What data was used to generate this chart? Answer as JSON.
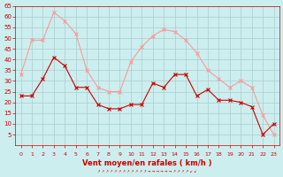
{
  "hours": [
    0,
    1,
    2,
    3,
    4,
    5,
    6,
    7,
    8,
    9,
    10,
    11,
    12,
    13,
    14,
    15,
    16,
    17,
    18,
    19,
    20,
    21,
    22,
    23
  ],
  "wind_avg": [
    23,
    23,
    31,
    41,
    37,
    27,
    27,
    19,
    17,
    17,
    19,
    19,
    29,
    27,
    33,
    33,
    23,
    26,
    21,
    21,
    20,
    18,
    5,
    10
  ],
  "wind_gust": [
    33,
    49,
    49,
    62,
    58,
    52,
    35,
    27,
    25,
    25,
    39,
    46,
    51,
    54,
    53,
    49,
    43,
    35,
    31,
    27,
    30,
    27,
    14,
    5
  ],
  "line_color_avg": "#cc0000",
  "line_color_gust": "#ff9999",
  "marker_color_avg": "#cc0000",
  "marker_color_gust": "#ff9999",
  "bg_color": "#cceeee",
  "grid_color": "#aacccc",
  "xlabel": "Vent moyen/en rafales ( km/h )",
  "xlabel_color": "#cc0000",
  "tick_color": "#cc0000",
  "ylim": [
    0,
    65
  ],
  "yticks": [
    5,
    10,
    15,
    20,
    25,
    30,
    35,
    40,
    45,
    50,
    55,
    60,
    65
  ],
  "title_color": "#cc0000"
}
